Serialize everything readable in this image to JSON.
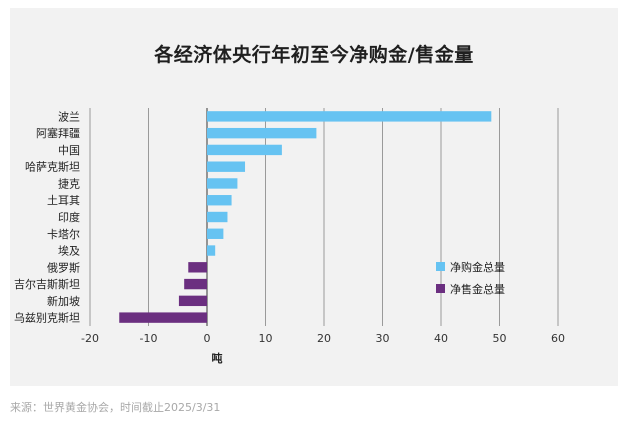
{
  "source_text": "来源：世界黄金协会，时间截止2025/3/31",
  "chart_data": {
    "type": "bar",
    "orientation": "horizontal",
    "title": "各经济体央行年初至今净购金/售金量",
    "xlabel": "吨",
    "xlim": [
      -20,
      60
    ],
    "xticks": [
      -20,
      -10,
      0,
      10,
      20,
      30,
      40,
      50,
      60
    ],
    "grid": true,
    "legend_position": "bottom-right",
    "categories": [
      "波兰",
      "阿塞拜疆",
      "中国",
      "哈萨克斯坦",
      "捷克",
      "土耳其",
      "印度",
      "卡塔尔",
      "埃及",
      "俄罗斯",
      "吉尔吉斯斯坦",
      "新加坡",
      "乌兹别克斯坦"
    ],
    "series": [
      {
        "name": "净购金总量",
        "color": "#66c3f2",
        "values": [
          48.6,
          18.7,
          12.8,
          6.5,
          5.2,
          4.2,
          3.5,
          2.8,
          1.4,
          null,
          null,
          null,
          null
        ]
      },
      {
        "name": "净售金总量",
        "color": "#6b2f80",
        "values": [
          null,
          null,
          null,
          null,
          null,
          null,
          null,
          null,
          null,
          -3.2,
          -3.9,
          -4.8,
          -15.0
        ]
      }
    ]
  }
}
